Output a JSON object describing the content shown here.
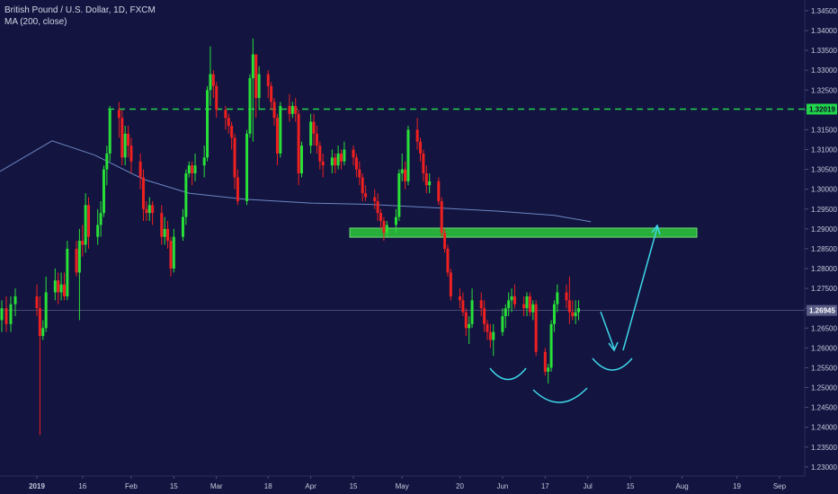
{
  "header": {
    "symbol_line": "British Pound / U.S. Dollar, 1D, FXCM",
    "indicator_line": "MA (200, close)"
  },
  "chart_data": {
    "type": "candlestick",
    "symbol": "GBPUSD",
    "timeframe": "1D",
    "y_axis": {
      "ticks": [
        "1.34500",
        "1.34000",
        "1.33500",
        "1.33000",
        "1.32500",
        "1.32000",
        "1.31500",
        "1.31000",
        "1.30500",
        "1.30000",
        "1.29500",
        "1.29000",
        "1.28500",
        "1.28000",
        "1.27500",
        "1.27000",
        "1.26500",
        "1.26000",
        "1.25500",
        "1.25000",
        "1.24500",
        "1.24000",
        "1.23500",
        "1.23000"
      ],
      "ylim": [
        1.2277,
        1.3477
      ]
    },
    "x_axis": {
      "ticks": [
        "2019",
        "16",
        "Feb",
        "15",
        "Mar",
        "18",
        "Apr",
        "15",
        "May",
        "20",
        "Jun",
        "17",
        "Jul",
        "15",
        "Aug",
        "19",
        "Sep"
      ]
    },
    "current_price": {
      "label": "1.26945",
      "value": 1.26945,
      "color": "#8d8fb0"
    },
    "resistance_level": {
      "label": "1.32019",
      "value": 1.32019,
      "color": "#22d44a"
    },
    "support_zone": {
      "low": 1.2879,
      "high": 1.2902,
      "color": "#2bbf3a"
    },
    "colors": {
      "up": "#28e038",
      "down": "#ee2020",
      "ma": "#7d9bd8",
      "background": "#131440",
      "pattern": "#3ed7e8"
    },
    "ma200": [
      {
        "date": "2018-12-26",
        "value": 1.3045
      },
      {
        "date": "2019-01-06",
        "value": 1.3122
      },
      {
        "date": "2019-01-20",
        "value": 1.3086
      },
      {
        "date": "2019-02-05",
        "value": 1.3025
      },
      {
        "date": "2019-02-20",
        "value": 1.299
      },
      {
        "date": "2019-03-10",
        "value": 1.2975
      },
      {
        "date": "2019-04-01",
        "value": 1.2965
      },
      {
        "date": "2019-04-20",
        "value": 1.2962
      },
      {
        "date": "2019-05-10",
        "value": 1.2954
      },
      {
        "date": "2019-06-01",
        "value": 1.2945
      },
      {
        "date": "2019-06-20",
        "value": 1.2934
      },
      {
        "date": "2019-07-02",
        "value": 1.2918
      }
    ],
    "candles": [
      {
        "date": "2018-12-26",
        "o": 1.267,
        "h": 1.272,
        "l": 1.264,
        "c": 1.27
      },
      {
        "date": "2018-12-27",
        "o": 1.27,
        "h": 1.273,
        "l": 1.264,
        "c": 1.266
      },
      {
        "date": "2018-12-28",
        "o": 1.266,
        "h": 1.273,
        "l": 1.264,
        "c": 1.271
      },
      {
        "date": "2018-12-31",
        "o": 1.271,
        "h": 1.275,
        "l": 1.268,
        "c": 1.273
      },
      {
        "date": "2019-01-01",
        "o": 1.273,
        "h": 1.276,
        "l": 1.268,
        "c": 1.27
      },
      {
        "date": "2019-01-02",
        "o": 1.27,
        "h": 1.273,
        "l": 1.238,
        "c": 1.263
      },
      {
        "date": "2019-01-03",
        "o": 1.263,
        "h": 1.267,
        "l": 1.262,
        "c": 1.265
      },
      {
        "date": "2019-01-04",
        "o": 1.265,
        "h": 1.278,
        "l": 1.264,
        "c": 1.274
      },
      {
        "date": "2019-01-07",
        "o": 1.274,
        "h": 1.28,
        "l": 1.272,
        "c": 1.277
      },
      {
        "date": "2019-01-08",
        "o": 1.277,
        "h": 1.279,
        "l": 1.271,
        "c": 1.274
      },
      {
        "date": "2019-01-09",
        "o": 1.274,
        "h": 1.279,
        "l": 1.272,
        "c": 1.276
      },
      {
        "date": "2019-01-10",
        "o": 1.276,
        "h": 1.279,
        "l": 1.272,
        "c": 1.273
      },
      {
        "date": "2019-01-11",
        "o": 1.273,
        "h": 1.287,
        "l": 1.272,
        "c": 1.285
      },
      {
        "date": "2019-01-14",
        "o": 1.285,
        "h": 1.287,
        "l": 1.278,
        "c": 1.279
      },
      {
        "date": "2019-01-15",
        "o": 1.279,
        "h": 1.29,
        "l": 1.267,
        "c": 1.287
      },
      {
        "date": "2019-01-16",
        "o": 1.287,
        "h": 1.291,
        "l": 1.283,
        "c": 1.286
      },
      {
        "date": "2019-01-17",
        "o": 1.286,
        "h": 1.299,
        "l": 1.284,
        "c": 1.296
      },
      {
        "date": "2019-01-18",
        "o": 1.296,
        "h": 1.298,
        "l": 1.285,
        "c": 1.288
      },
      {
        "date": "2019-01-21",
        "o": 1.288,
        "h": 1.295,
        "l": 1.286,
        "c": 1.291
      },
      {
        "date": "2019-01-22",
        "o": 1.291,
        "h": 1.297,
        "l": 1.288,
        "c": 1.294
      },
      {
        "date": "2019-01-23",
        "o": 1.294,
        "h": 1.306,
        "l": 1.293,
        "c": 1.305
      },
      {
        "date": "2019-01-24",
        "o": 1.305,
        "h": 1.311,
        "l": 1.301,
        "c": 1.309
      },
      {
        "date": "2019-01-25",
        "o": 1.309,
        "h": 1.321,
        "l": 1.307,
        "c": 1.32
      },
      {
        "date": "2019-01-28",
        "o": 1.32,
        "h": 1.322,
        "l": 1.313,
        "c": 1.318
      },
      {
        "date": "2019-01-29",
        "o": 1.318,
        "h": 1.32,
        "l": 1.306,
        "c": 1.308
      },
      {
        "date": "2019-01-30",
        "o": 1.308,
        "h": 1.316,
        "l": 1.306,
        "c": 1.314
      },
      {
        "date": "2019-01-31",
        "o": 1.314,
        "h": 1.316,
        "l": 1.308,
        "c": 1.311
      },
      {
        "date": "2019-02-01",
        "o": 1.311,
        "h": 1.313,
        "l": 1.304,
        "c": 1.307
      },
      {
        "date": "2019-02-04",
        "o": 1.307,
        "h": 1.309,
        "l": 1.3,
        "c": 1.303
      },
      {
        "date": "2019-02-05",
        "o": 1.303,
        "h": 1.305,
        "l": 1.292,
        "c": 1.295
      },
      {
        "date": "2019-02-06",
        "o": 1.295,
        "h": 1.297,
        "l": 1.292,
        "c": 1.294
      },
      {
        "date": "2019-02-07",
        "o": 1.294,
        "h": 1.298,
        "l": 1.292,
        "c": 1.296
      },
      {
        "date": "2019-02-08",
        "o": 1.296,
        "h": 1.297,
        "l": 1.291,
        "c": 1.294
      },
      {
        "date": "2019-02-11",
        "o": 1.294,
        "h": 1.296,
        "l": 1.286,
        "c": 1.288
      },
      {
        "date": "2019-02-12",
        "o": 1.288,
        "h": 1.293,
        "l": 1.286,
        "c": 1.29
      },
      {
        "date": "2019-02-13",
        "o": 1.29,
        "h": 1.292,
        "l": 1.285,
        "c": 1.287
      },
      {
        "date": "2019-02-14",
        "o": 1.287,
        "h": 1.288,
        "l": 1.278,
        "c": 1.28
      },
      {
        "date": "2019-02-15",
        "o": 1.28,
        "h": 1.29,
        "l": 1.279,
        "c": 1.288
      },
      {
        "date": "2019-02-18",
        "o": 1.288,
        "h": 1.295,
        "l": 1.287,
        "c": 1.293
      },
      {
        "date": "2019-02-19",
        "o": 1.293,
        "h": 1.305,
        "l": 1.291,
        "c": 1.304
      },
      {
        "date": "2019-02-20",
        "o": 1.304,
        "h": 1.307,
        "l": 1.303,
        "c": 1.306
      },
      {
        "date": "2019-02-21",
        "o": 1.306,
        "h": 1.307,
        "l": 1.301,
        "c": 1.304
      },
      {
        "date": "2019-02-22",
        "o": 1.304,
        "h": 1.309,
        "l": 1.302,
        "c": 1.306
      },
      {
        "date": "2019-02-25",
        "o": 1.306,
        "h": 1.311,
        "l": 1.303,
        "c": 1.308
      },
      {
        "date": "2019-02-26",
        "o": 1.308,
        "h": 1.326,
        "l": 1.307,
        "c": 1.325
      },
      {
        "date": "2019-02-27",
        "o": 1.325,
        "h": 1.336,
        "l": 1.321,
        "c": 1.329
      },
      {
        "date": "2019-02-28",
        "o": 1.329,
        "h": 1.33,
        "l": 1.323,
        "c": 1.326
      },
      {
        "date": "2019-03-01",
        "o": 1.326,
        "h": 1.327,
        "l": 1.318,
        "c": 1.32
      },
      {
        "date": "2019-03-04",
        "o": 1.32,
        "h": 1.321,
        "l": 1.315,
        "c": 1.318
      },
      {
        "date": "2019-03-05",
        "o": 1.318,
        "h": 1.319,
        "l": 1.314,
        "c": 1.316
      },
      {
        "date": "2019-03-06",
        "o": 1.316,
        "h": 1.317,
        "l": 1.31,
        "c": 1.313
      },
      {
        "date": "2019-03-07",
        "o": 1.313,
        "h": 1.314,
        "l": 1.3,
        "c": 1.303
      },
      {
        "date": "2019-03-08",
        "o": 1.303,
        "h": 1.305,
        "l": 1.296,
        "c": 1.297
      },
      {
        "date": "2019-03-11",
        "o": 1.297,
        "h": 1.315,
        "l": 1.296,
        "c": 1.314
      },
      {
        "date": "2019-03-12",
        "o": 1.314,
        "h": 1.329,
        "l": 1.313,
        "c": 1.328
      },
      {
        "date": "2019-03-13",
        "o": 1.328,
        "h": 1.338,
        "l": 1.312,
        "c": 1.334
      },
      {
        "date": "2019-03-14",
        "o": 1.334,
        "h": 1.334,
        "l": 1.318,
        "c": 1.323
      },
      {
        "date": "2019-03-15",
        "o": 1.323,
        "h": 1.331,
        "l": 1.32,
        "c": 1.329
      },
      {
        "date": "2019-03-18",
        "o": 1.329,
        "h": 1.33,
        "l": 1.323,
        "c": 1.326
      },
      {
        "date": "2019-03-19",
        "o": 1.326,
        "h": 1.327,
        "l": 1.32,
        "c": 1.322
      },
      {
        "date": "2019-03-20",
        "o": 1.322,
        "h": 1.323,
        "l": 1.316,
        "c": 1.318
      },
      {
        "date": "2019-03-21",
        "o": 1.318,
        "h": 1.319,
        "l": 1.306,
        "c": 1.309
      },
      {
        "date": "2019-03-22",
        "o": 1.309,
        "h": 1.322,
        "l": 1.308,
        "c": 1.321
      },
      {
        "date": "2019-03-25",
        "o": 1.321,
        "h": 1.324,
        "l": 1.317,
        "c": 1.319
      },
      {
        "date": "2019-03-26",
        "o": 1.319,
        "h": 1.322,
        "l": 1.318,
        "c": 1.321
      },
      {
        "date": "2019-03-27",
        "o": 1.321,
        "h": 1.323,
        "l": 1.317,
        "c": 1.319
      },
      {
        "date": "2019-03-28",
        "o": 1.319,
        "h": 1.32,
        "l": 1.301,
        "c": 1.304
      },
      {
        "date": "2019-03-29",
        "o": 1.304,
        "h": 1.312,
        "l": 1.303,
        "c": 1.311
      },
      {
        "date": "2019-04-01",
        "o": 1.311,
        "h": 1.319,
        "l": 1.309,
        "c": 1.317
      },
      {
        "date": "2019-04-02",
        "o": 1.317,
        "h": 1.319,
        "l": 1.311,
        "c": 1.314
      },
      {
        "date": "2019-04-03",
        "o": 1.314,
        "h": 1.316,
        "l": 1.309,
        "c": 1.311
      },
      {
        "date": "2019-04-04",
        "o": 1.311,
        "h": 1.312,
        "l": 1.305,
        "c": 1.307
      },
      {
        "date": "2019-04-05",
        "o": 1.307,
        "h": 1.309,
        "l": 1.303,
        "c": 1.306
      },
      {
        "date": "2019-04-08",
        "o": 1.306,
        "h": 1.31,
        "l": 1.304,
        "c": 1.308
      },
      {
        "date": "2019-04-09",
        "o": 1.308,
        "h": 1.309,
        "l": 1.304,
        "c": 1.306
      },
      {
        "date": "2019-04-10",
        "o": 1.306,
        "h": 1.311,
        "l": 1.305,
        "c": 1.309
      },
      {
        "date": "2019-04-11",
        "o": 1.309,
        "h": 1.31,
        "l": 1.305,
        "c": 1.307
      },
      {
        "date": "2019-04-12",
        "o": 1.307,
        "h": 1.312,
        "l": 1.306,
        "c": 1.31
      },
      {
        "date": "2019-04-15",
        "o": 1.31,
        "h": 1.311,
        "l": 1.306,
        "c": 1.308
      },
      {
        "date": "2019-04-16",
        "o": 1.308,
        "h": 1.309,
        "l": 1.303,
        "c": 1.305
      },
      {
        "date": "2019-04-17",
        "o": 1.305,
        "h": 1.307,
        "l": 1.301,
        "c": 1.303
      },
      {
        "date": "2019-04-18",
        "o": 1.303,
        "h": 1.304,
        "l": 1.297,
        "c": 1.299
      },
      {
        "date": "2019-04-19",
        "o": 1.299,
        "h": 1.301,
        "l": 1.297,
        "c": 1.298
      },
      {
        "date": "2019-04-22",
        "o": 1.298,
        "h": 1.3,
        "l": 1.295,
        "c": 1.297
      },
      {
        "date": "2019-04-23",
        "o": 1.297,
        "h": 1.299,
        "l": 1.292,
        "c": 1.294
      },
      {
        "date": "2019-04-24",
        "o": 1.294,
        "h": 1.295,
        "l": 1.29,
        "c": 1.292
      },
      {
        "date": "2019-04-25",
        "o": 1.292,
        "h": 1.293,
        "l": 1.287,
        "c": 1.289
      },
      {
        "date": "2019-04-26",
        "o": 1.289,
        "h": 1.292,
        "l": 1.288,
        "c": 1.291
      },
      {
        "date": "2019-04-29",
        "o": 1.291,
        "h": 1.295,
        "l": 1.289,
        "c": 1.293
      },
      {
        "date": "2019-04-30",
        "o": 1.293,
        "h": 1.305,
        "l": 1.292,
        "c": 1.304
      },
      {
        "date": "2019-05-01",
        "o": 1.304,
        "h": 1.309,
        "l": 1.302,
        "c": 1.305
      },
      {
        "date": "2019-05-02",
        "o": 1.305,
        "h": 1.307,
        "l": 1.3,
        "c": 1.302
      },
      {
        "date": "2019-05-03",
        "o": 1.302,
        "h": 1.316,
        "l": 1.301,
        "c": 1.315
      },
      {
        "date": "2019-05-06",
        "o": 1.315,
        "h": 1.318,
        "l": 1.31,
        "c": 1.312
      },
      {
        "date": "2019-05-07",
        "o": 1.312,
        "h": 1.313,
        "l": 1.307,
        "c": 1.309
      },
      {
        "date": "2019-05-08",
        "o": 1.309,
        "h": 1.31,
        "l": 1.302,
        "c": 1.304
      },
      {
        "date": "2019-05-09",
        "o": 1.304,
        "h": 1.306,
        "l": 1.299,
        "c": 1.301
      },
      {
        "date": "2019-05-10",
        "o": 1.301,
        "h": 1.304,
        "l": 1.299,
        "c": 1.302
      },
      {
        "date": "2019-05-13",
        "o": 1.302,
        "h": 1.303,
        "l": 1.296,
        "c": 1.297
      },
      {
        "date": "2019-05-14",
        "o": 1.297,
        "h": 1.298,
        "l": 1.288,
        "c": 1.289
      },
      {
        "date": "2019-05-15",
        "o": 1.289,
        "h": 1.29,
        "l": 1.284,
        "c": 1.285
      },
      {
        "date": "2019-05-16",
        "o": 1.285,
        "h": 1.286,
        "l": 1.278,
        "c": 1.279
      },
      {
        "date": "2019-05-17",
        "o": 1.279,
        "h": 1.28,
        "l": 1.272,
        "c": 1.273
      },
      {
        "date": "2019-05-20",
        "o": 1.273,
        "h": 1.275,
        "l": 1.27,
        "c": 1.272
      },
      {
        "date": "2019-05-21",
        "o": 1.272,
        "h": 1.274,
        "l": 1.268,
        "c": 1.269
      },
      {
        "date": "2019-05-22",
        "o": 1.269,
        "h": 1.27,
        "l": 1.263,
        "c": 1.265
      },
      {
        "date": "2019-05-23",
        "o": 1.265,
        "h": 1.268,
        "l": 1.261,
        "c": 1.266
      },
      {
        "date": "2019-05-24",
        "o": 1.266,
        "h": 1.275,
        "l": 1.265,
        "c": 1.272
      },
      {
        "date": "2019-05-27",
        "o": 1.272,
        "h": 1.274,
        "l": 1.268,
        "c": 1.27
      },
      {
        "date": "2019-05-28",
        "o": 1.27,
        "h": 1.272,
        "l": 1.264,
        "c": 1.266
      },
      {
        "date": "2019-05-29",
        "o": 1.266,
        "h": 1.267,
        "l": 1.262,
        "c": 1.264
      },
      {
        "date": "2019-05-30",
        "o": 1.264,
        "h": 1.266,
        "l": 1.26,
        "c": 1.262
      },
      {
        "date": "2019-05-31",
        "o": 1.262,
        "h": 1.266,
        "l": 1.258,
        "c": 1.264
      },
      {
        "date": "2019-06-03",
        "o": 1.264,
        "h": 1.27,
        "l": 1.263,
        "c": 1.268
      },
      {
        "date": "2019-06-04",
        "o": 1.268,
        "h": 1.271,
        "l": 1.265,
        "c": 1.27
      },
      {
        "date": "2019-06-05",
        "o": 1.27,
        "h": 1.274,
        "l": 1.268,
        "c": 1.272
      },
      {
        "date": "2019-06-06",
        "o": 1.272,
        "h": 1.275,
        "l": 1.269,
        "c": 1.273
      },
      {
        "date": "2019-06-07",
        "o": 1.273,
        "h": 1.276,
        "l": 1.27,
        "c": 1.271
      },
      {
        "date": "2019-06-10",
        "o": 1.271,
        "h": 1.273,
        "l": 1.268,
        "c": 1.27
      },
      {
        "date": "2019-06-11",
        "o": 1.27,
        "h": 1.274,
        "l": 1.268,
        "c": 1.273
      },
      {
        "date": "2019-06-12",
        "o": 1.273,
        "h": 1.274,
        "l": 1.268,
        "c": 1.269
      },
      {
        "date": "2019-06-13",
        "o": 1.269,
        "h": 1.272,
        "l": 1.267,
        "c": 1.271
      },
      {
        "date": "2019-06-14",
        "o": 1.271,
        "h": 1.272,
        "l": 1.258,
        "c": 1.259
      },
      {
        "date": "2019-06-17",
        "o": 1.259,
        "h": 1.26,
        "l": 1.253,
        "c": 1.254
      },
      {
        "date": "2019-06-18",
        "o": 1.254,
        "h": 1.256,
        "l": 1.251,
        "c": 1.255
      },
      {
        "date": "2019-06-19",
        "o": 1.255,
        "h": 1.267,
        "l": 1.254,
        "c": 1.266
      },
      {
        "date": "2019-06-20",
        "o": 1.266,
        "h": 1.272,
        "l": 1.264,
        "c": 1.271
      },
      {
        "date": "2019-06-21",
        "o": 1.271,
        "h": 1.276,
        "l": 1.269,
        "c": 1.274
      },
      {
        "date": "2019-06-24",
        "o": 1.274,
        "h": 1.276,
        "l": 1.27,
        "c": 1.272
      },
      {
        "date": "2019-06-25",
        "o": 1.272,
        "h": 1.278,
        "l": 1.266,
        "c": 1.269
      },
      {
        "date": "2019-06-26",
        "o": 1.269,
        "h": 1.272,
        "l": 1.267,
        "c": 1.268
      },
      {
        "date": "2019-06-27",
        "o": 1.268,
        "h": 1.272,
        "l": 1.266,
        "c": 1.269
      },
      {
        "date": "2019-06-28",
        "o": 1.269,
        "h": 1.272,
        "l": 1.267,
        "c": 1.27
      }
    ]
  }
}
